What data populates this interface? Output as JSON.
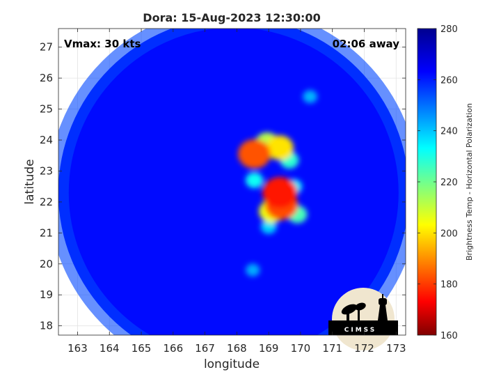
{
  "chart_data": {
    "type": "heatmap",
    "title": "Dora: 15-Aug-2023 12:30:00",
    "xlabel": "longitude",
    "ylabel": "latitude",
    "xlim": [
      162.4,
      173.3
    ],
    "ylim": [
      17.7,
      27.6
    ],
    "x_ticks": [
      163,
      164,
      165,
      166,
      167,
      168,
      169,
      170,
      171,
      172,
      173
    ],
    "y_ticks": [
      18,
      19,
      20,
      21,
      22,
      23,
      24,
      25,
      26,
      27
    ],
    "grid": true,
    "colorbar": {
      "label": "Brightness Temp - Horizontal Polarization",
      "range": [
        160,
        280
      ],
      "ticks": [
        160,
        180,
        200,
        220,
        240,
        260,
        280
      ],
      "colormap": "jet"
    },
    "swath": {
      "center_lon": 167.9,
      "center_lat": 22.3,
      "background_value": 262
    },
    "cold_cells": [
      {
        "lon": 168.55,
        "lat": 23.55,
        "value": 183
      },
      {
        "lon": 169.35,
        "lat": 23.75,
        "value": 200
      },
      {
        "lon": 168.95,
        "lat": 23.9,
        "value": 212
      },
      {
        "lon": 169.35,
        "lat": 22.3,
        "value": 176
      },
      {
        "lon": 169.4,
        "lat": 21.9,
        "value": 182
      },
      {
        "lon": 169.1,
        "lat": 21.7,
        "value": 205
      },
      {
        "lon": 169.9,
        "lat": 21.6,
        "value": 225
      },
      {
        "lon": 169.65,
        "lat": 23.35,
        "value": 228
      },
      {
        "lon": 168.55,
        "lat": 22.7,
        "value": 232
      },
      {
        "lon": 169.0,
        "lat": 21.2,
        "value": 238
      },
      {
        "lon": 170.3,
        "lat": 25.4,
        "value": 242
      },
      {
        "lon": 168.5,
        "lat": 19.8,
        "value": 243
      },
      {
        "lon": 169.8,
        "lat": 22.5,
        "value": 236
      }
    ],
    "annotations": {
      "vmax": "Vmax: 30 kts",
      "time_offset": "02:06 away"
    }
  },
  "logo": {
    "text": "CIMSS"
  }
}
